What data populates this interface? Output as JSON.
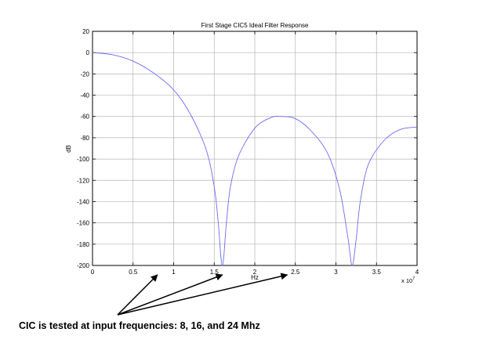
{
  "chart_data": {
    "type": "line",
    "title": "First Stage CIC5 Ideal Filter Response",
    "xlabel": "Hz",
    "ylabel": "dB",
    "x_multiplier": "x 10",
    "x_multiplier_exp": "7",
    "xlim": [
      0,
      4
    ],
    "ylim": [
      -200,
      20
    ],
    "xticks": [
      "0",
      "0.5",
      "1",
      "1.5",
      "2",
      "2.5",
      "3",
      "3.5",
      "4"
    ],
    "yticks": [
      "20",
      "0",
      "-20",
      "-40",
      "-60",
      "-80",
      "-100",
      "-120",
      "-140",
      "-160",
      "-180",
      "-200"
    ],
    "grid": true,
    "series": [
      {
        "color": "#6b6bf2",
        "x": [
          0,
          0.25,
          0.5,
          0.75,
          1.0,
          1.2,
          1.4,
          1.5,
          1.55,
          1.58,
          1.6,
          1.62,
          1.65,
          1.7,
          1.8,
          2.0,
          2.2,
          2.33,
          2.5,
          2.7,
          2.9,
          3.05,
          3.15,
          3.2,
          3.25,
          3.3,
          3.4,
          3.6,
          3.8,
          4.0
        ],
        "values": [
          0,
          -2,
          -8,
          -19,
          -35,
          -57,
          -91,
          -126,
          -160,
          -190,
          -200,
          -190,
          -160,
          -126,
          -97,
          -71,
          -61,
          -60,
          -62,
          -74,
          -95,
          -130,
          -175,
          -200,
          -175,
          -140,
          -105,
          -82,
          -72,
          -70
        ]
      }
    ]
  },
  "annotation": {
    "text": "CIC is tested at input frequencies: 8, 16, and 24 Mhz",
    "arrow_targets_hz_e7": [
      0.8,
      1.6,
      2.4
    ]
  }
}
